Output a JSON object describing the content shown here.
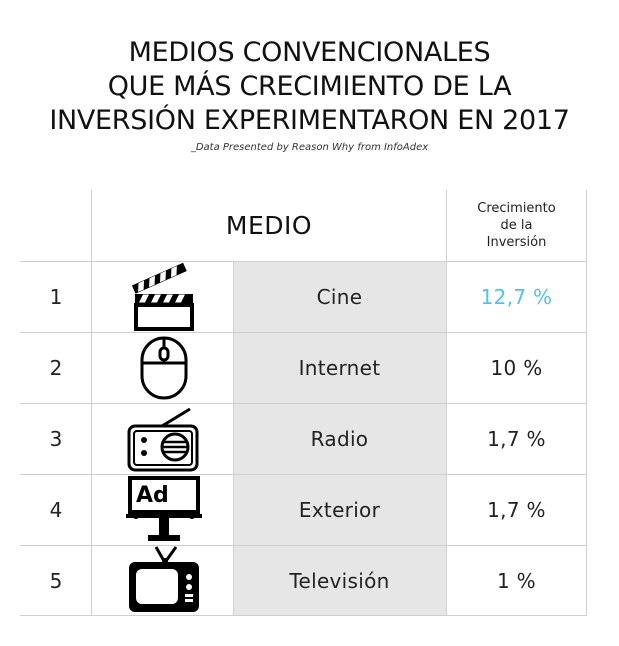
{
  "title": {
    "line1": "MEDIOS CONVENCIONALES",
    "line2": "QUE MÁS CRECIMIENTO DE LA",
    "line3": "INVERSIÓN EXPERIMENTARON EN 2017"
  },
  "subtitle": "_Data Presented by Reason Why from InfoAdex",
  "colors": {
    "highlight": "#4fc3e8",
    "grid": "#cfcfcf",
    "medio_cell": "#e6e6e6"
  },
  "chart_data": {
    "type": "table",
    "columns": {
      "medio": "MEDIO",
      "crecimiento": [
        "Crecimiento",
        "de la",
        "Inversión"
      ]
    },
    "rows": [
      {
        "rank": "1",
        "icon": "clapperboard-icon",
        "medio": "Cine",
        "value": 12.7,
        "label": "12,7 %",
        "highlight": true
      },
      {
        "rank": "2",
        "icon": "mouse-icon",
        "medio": "Internet",
        "value": 10,
        "label": "10 %",
        "highlight": false
      },
      {
        "rank": "3",
        "icon": "radio-icon",
        "medio": "Radio",
        "value": 1.7,
        "label": "1,7 %",
        "highlight": false
      },
      {
        "rank": "4",
        "icon": "billboard-icon",
        "medio": "Exterior",
        "value": 1.7,
        "label": "1,7 %",
        "highlight": false
      },
      {
        "rank": "5",
        "icon": "television-icon",
        "medio": "Televisión",
        "value": 1,
        "label": "1 %",
        "highlight": false
      }
    ],
    "billboard_text": "Ad"
  }
}
